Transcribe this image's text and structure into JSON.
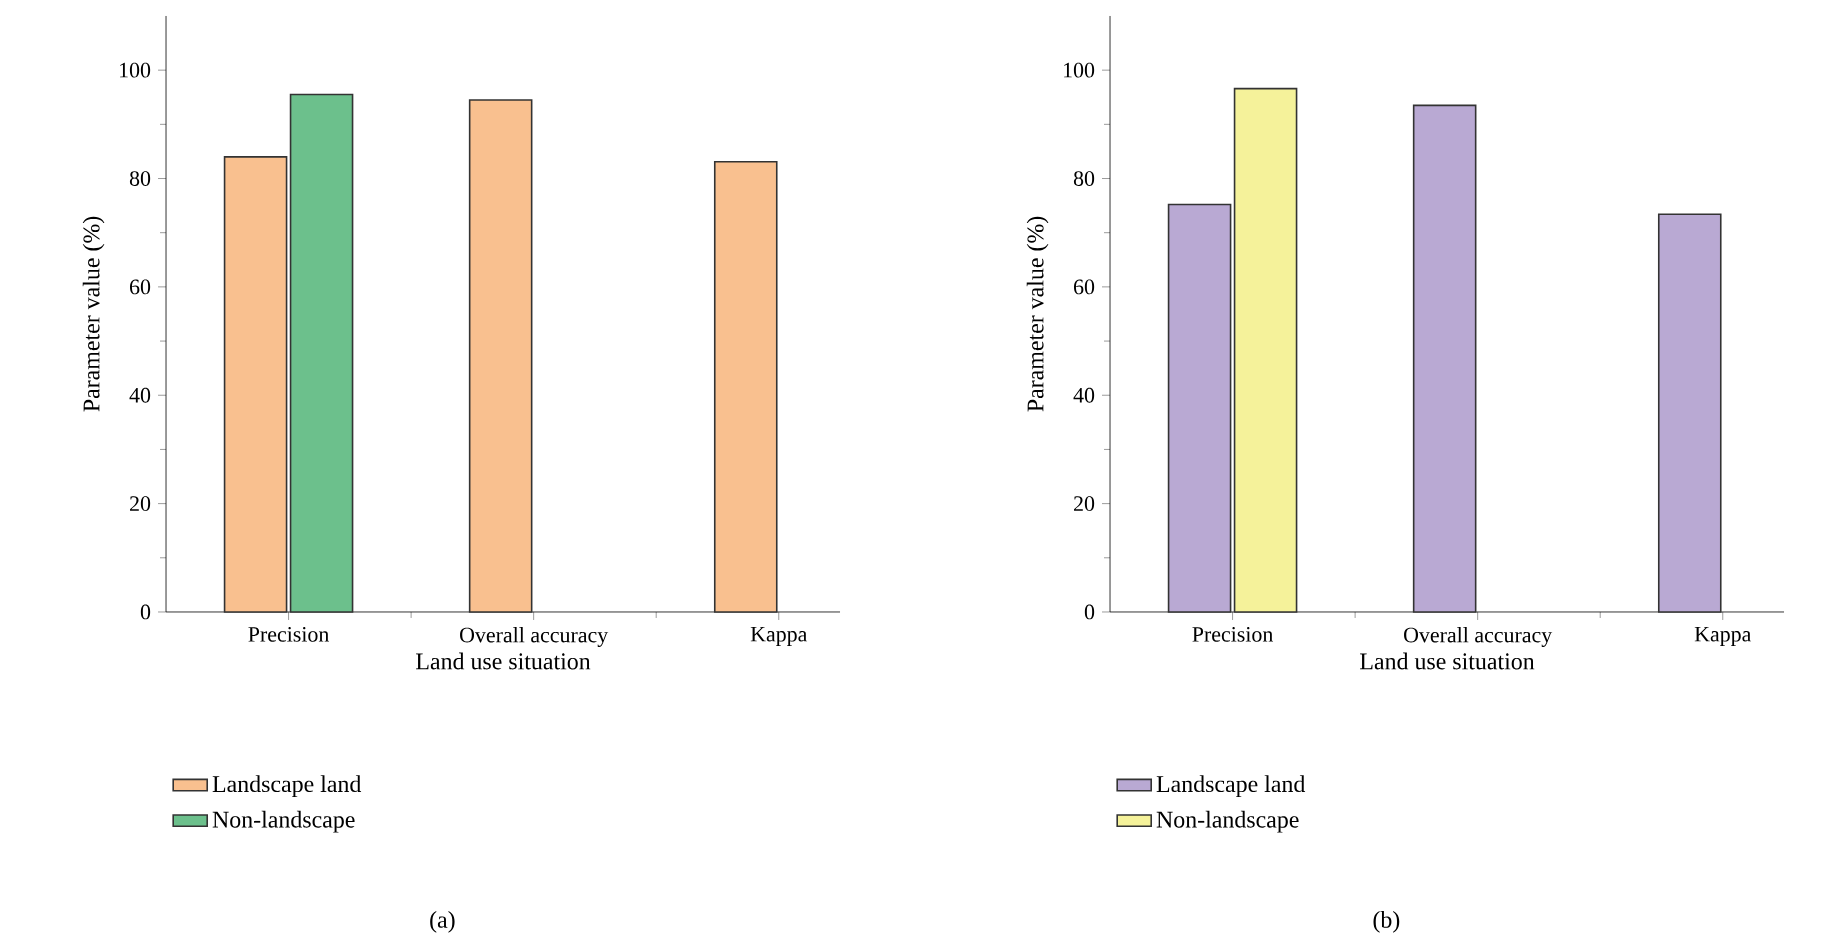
{
  "chart_data": [
    {
      "type": "bar",
      "categories": [
        "Precision",
        "Overall accuracy",
        "Kappa"
      ],
      "xlabel": "Land use situation",
      "ylabel": "Parameter value (%)",
      "ylim": [
        0,
        110
      ],
      "yticks": [
        0,
        20,
        40,
        60,
        80,
        100
      ],
      "legend": "bottom",
      "annotations": [
        "(a)"
      ],
      "series": [
        {
          "name": "Landscape land",
          "color": "#f9c08f",
          "values": [
            84.0,
            94.5,
            83.1
          ]
        },
        {
          "name": "Non-landscape",
          "color": "#6cc08c",
          "values": [
            95.5,
            null,
            null
          ]
        }
      ]
    },
    {
      "type": "bar",
      "categories": [
        "Precision",
        "Overall accuracy",
        "Kappa"
      ],
      "xlabel": "Land use situation",
      "ylabel": "Parameter value (%)",
      "ylim": [
        0,
        110
      ],
      "yticks": [
        0,
        20,
        40,
        60,
        80,
        100
      ],
      "legend": "bottom",
      "annotations": [
        "(b)"
      ],
      "series": [
        {
          "name": "Landscape land",
          "color": "#b9a9d3",
          "values": [
            75.2,
            93.5,
            73.4
          ]
        },
        {
          "name": "Non-landscape",
          "color": "#f5f29a",
          "values": [
            96.6,
            null,
            null
          ]
        }
      ]
    }
  ]
}
